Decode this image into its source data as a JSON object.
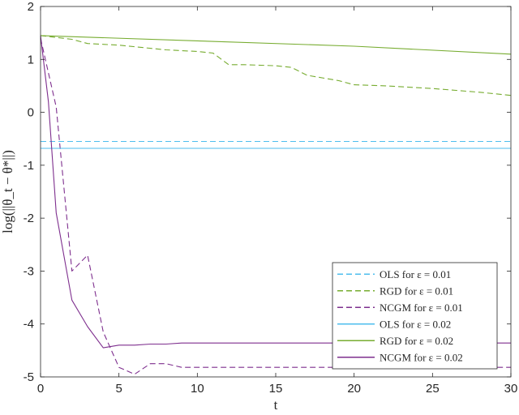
{
  "chart_data": {
    "type": "line",
    "xlabel": "t",
    "ylabel": "log(||θ_t − θ*||)",
    "xlim": [
      0,
      30
    ],
    "ylim": [
      -5,
      2
    ],
    "x_ticks": [
      0,
      5,
      10,
      15,
      20,
      25,
      30
    ],
    "y_ticks": [
      2,
      1,
      0,
      -1,
      -2,
      -3,
      -4,
      -5
    ],
    "grid": false,
    "legend_position": "bottom-right",
    "series": [
      {
        "name": "OLS for ε = 0.01",
        "color": "#4dbeee",
        "style": "dashed",
        "x": [
          0,
          30
        ],
        "y": [
          -0.55,
          -0.55
        ]
      },
      {
        "name": "RGD for ε = 0.01",
        "color": "#77ac30",
        "style": "dashed",
        "x": [
          0,
          2,
          3,
          5,
          8,
          10,
          11,
          12,
          13,
          15,
          16,
          17,
          19,
          20,
          22,
          25,
          28,
          30
        ],
        "y": [
          1.45,
          1.38,
          1.3,
          1.27,
          1.18,
          1.15,
          1.12,
          0.9,
          0.9,
          0.88,
          0.85,
          0.7,
          0.6,
          0.52,
          0.5,
          0.45,
          0.38,
          0.32
        ]
      },
      {
        "name": "NCGM for ε = 0.01",
        "color": "#7e2f8e",
        "style": "dashed",
        "x": [
          0,
          1,
          2,
          3,
          4,
          5,
          6,
          7,
          8,
          9,
          10,
          15,
          20,
          25,
          30
        ],
        "y": [
          1.4,
          0.1,
          -3.0,
          -2.7,
          -4.15,
          -4.82,
          -4.95,
          -4.75,
          -4.75,
          -4.82,
          -4.82,
          -4.82,
          -4.82,
          -4.82,
          -4.82
        ]
      },
      {
        "name": "OLS for ε = 0.02",
        "color": "#4dbeee",
        "style": "solid",
        "x": [
          0,
          30
        ],
        "y": [
          -0.68,
          -0.68
        ]
      },
      {
        "name": "RGD for ε = 0.02",
        "color": "#77ac30",
        "style": "solid",
        "x": [
          0,
          10,
          20,
          30
        ],
        "y": [
          1.45,
          1.35,
          1.25,
          1.1
        ]
      },
      {
        "name": "NCGM for ε = 0.02",
        "color": "#7e2f8e",
        "style": "solid",
        "x": [
          0,
          0.5,
          1,
          2,
          3,
          4,
          5,
          6,
          7,
          8,
          9,
          10,
          15,
          20,
          25,
          30
        ],
        "y": [
          1.45,
          0.2,
          -1.9,
          -3.55,
          -4.05,
          -4.45,
          -4.4,
          -4.4,
          -4.38,
          -4.38,
          -4.36,
          -4.36,
          -4.36,
          -4.36,
          -4.36,
          -4.36
        ]
      }
    ]
  }
}
